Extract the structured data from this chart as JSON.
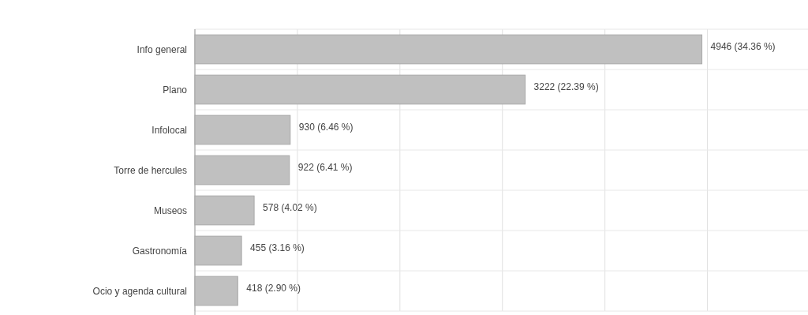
{
  "chart_data": {
    "type": "bar",
    "orientation": "horizontal",
    "categories": [
      "Info general",
      "Plano",
      "Infolocal",
      "Torre de hercules",
      "Museos",
      "Gastronomía",
      "Ocio y agenda cultural"
    ],
    "values": [
      4946,
      3222,
      930,
      922,
      578,
      455,
      418
    ],
    "value_labels": [
      "4946 (34.36 %)",
      "3222 (22.39 %)",
      "930 (6.46 %)",
      "922 (6.41 %)",
      "578 (4.02 %)",
      "455 (3.16 %)",
      "418 (2.90 %)"
    ],
    "color": "#c0c0c0",
    "xlim": [
      0,
      5950
    ],
    "xticks": [
      {
        "value": 0,
        "label": null
      },
      {
        "value": 1000,
        "label": null
      },
      {
        "value": 2000,
        "label": null
      },
      {
        "value": 3000,
        "label": null
      },
      {
        "value": 4000,
        "label": null
      },
      {
        "value": 5000,
        "label": null
      }
    ],
    "tick_labels": "y",
    "grid": true
  }
}
